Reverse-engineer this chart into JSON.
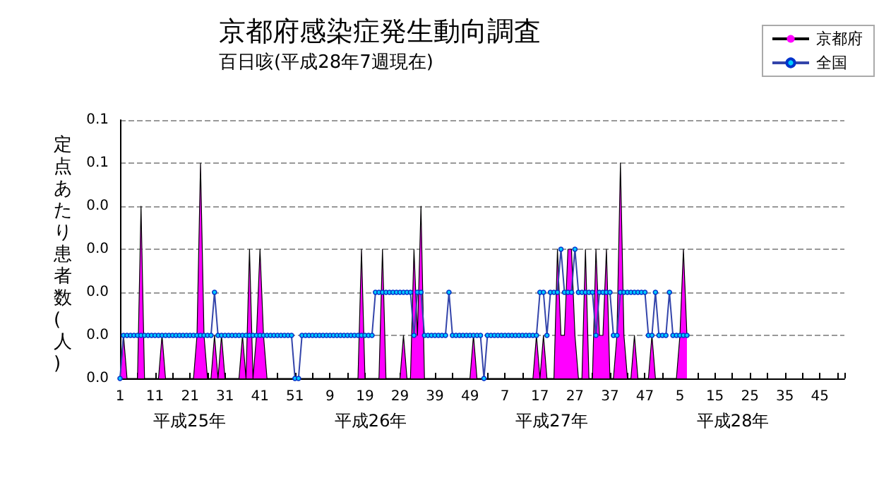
{
  "chart_data": {
    "type": "line",
    "title": "京都府感染症発生動向調査",
    "subtitle": "百日咳(平成28年7週現在)",
    "ylabel": "定点あたり患者数(人)",
    "annotations": [
      "平成25年",
      "平成26年",
      "平成27年",
      "平成28年"
    ],
    "categories": [
      "1",
      null,
      null,
      null,
      null,
      null,
      null,
      null,
      null,
      null,
      "11",
      null,
      null,
      null,
      null,
      null,
      null,
      null,
      null,
      null,
      "21",
      null,
      null,
      null,
      null,
      null,
      null,
      null,
      null,
      null,
      "31",
      null,
      null,
      null,
      null,
      null,
      null,
      null,
      null,
      null,
      "41",
      null,
      null,
      null,
      null,
      null,
      null,
      null,
      null,
      null,
      "51",
      null,
      null,
      null,
      null,
      null,
      null,
      null,
      null,
      null,
      "9",
      null,
      null,
      null,
      null,
      null,
      null,
      null,
      null,
      null,
      "19",
      null,
      null,
      null,
      null,
      null,
      null,
      null,
      null,
      null,
      "29",
      null,
      null,
      null,
      null,
      null,
      null,
      null,
      null,
      null,
      "39",
      null,
      null,
      null,
      null,
      null,
      null,
      null,
      null,
      null,
      "49",
      null,
      null,
      null,
      null,
      null,
      null,
      null,
      null,
      null,
      "7",
      null,
      null,
      null,
      null,
      null,
      null,
      null,
      null,
      null,
      "17",
      null,
      null,
      null,
      null,
      null,
      null,
      null,
      null,
      null,
      "27",
      null,
      null,
      null,
      null,
      null,
      null,
      null,
      null,
      null,
      "37",
      null,
      null,
      null,
      null,
      null,
      null,
      null,
      null,
      null,
      "47",
      null,
      null,
      null,
      null,
      null,
      null,
      null,
      null,
      null,
      "5",
      null,
      null,
      null,
      null,
      null,
      null,
      null,
      null,
      null,
      "15",
      null,
      null,
      null,
      null,
      null,
      null,
      null,
      null,
      null,
      "25",
      null,
      null,
      null,
      null,
      null,
      null,
      null,
      null,
      null,
      "35",
      null,
      null,
      null,
      null,
      null,
      null,
      null,
      null,
      null,
      "45",
      null,
      null,
      null,
      null,
      null,
      null,
      null
    ],
    "series": [
      {
        "name": "京都府",
        "type": "area",
        "color": "#ff00ff",
        "values": [
          0,
          0.01,
          0,
          0,
          0,
          0,
          0.04,
          0,
          0,
          0,
          0,
          0,
          0.01,
          0,
          0,
          0,
          0,
          0,
          0,
          0,
          0,
          0,
          0.01,
          0.05,
          0.01,
          0,
          0,
          0.01,
          0,
          0.01,
          0,
          0,
          0,
          0,
          0,
          0.01,
          0,
          0.03,
          0,
          0.01,
          0.03,
          0.01,
          0,
          0,
          0,
          0,
          0,
          0,
          0,
          0,
          0,
          0,
          0,
          0,
          0,
          0,
          0,
          0,
          0,
          0,
          0,
          0,
          0,
          0,
          0,
          0,
          0,
          0,
          0,
          0.03,
          0,
          0,
          0,
          0,
          0,
          0.03,
          0,
          0,
          0,
          0,
          0,
          0.01,
          0,
          0,
          0.03,
          0.01,
          0.04,
          0,
          0,
          0,
          0,
          0,
          0,
          0,
          0,
          0,
          0,
          0,
          0,
          0,
          0,
          0.01,
          0,
          0,
          0,
          0,
          0,
          0,
          0,
          0,
          0,
          0,
          0,
          0,
          0,
          0,
          0,
          0,
          0,
          0.01,
          0,
          0.01,
          0,
          0,
          0,
          0.03,
          0.01,
          0.01,
          0.03,
          0.03,
          0.01,
          0,
          0,
          0.03,
          0,
          0,
          0.03,
          0.01,
          0.01,
          0.03,
          0,
          0,
          0.01,
          0.05,
          0.01,
          0,
          0,
          0.01,
          0,
          0,
          0,
          0,
          0.01,
          0,
          0,
          0,
          0,
          0,
          0,
          0,
          0.01,
          0.03,
          0.01,
          null,
          null,
          null,
          null,
          null,
          null,
          null,
          null,
          null,
          null,
          null,
          null,
          null,
          null,
          null,
          null,
          null,
          null,
          null,
          null,
          null,
          null,
          null,
          null,
          null,
          null,
          null,
          null,
          null,
          null,
          null,
          null,
          null,
          null,
          null,
          null,
          null,
          null,
          null,
          null,
          null,
          null,
          null,
          null,
          null
        ]
      },
      {
        "name": "全国",
        "color": "#00ccff",
        "marker": "circle",
        "values": [
          0,
          0.01,
          0.01,
          0.01,
          0.01,
          0.01,
          0.01,
          0.01,
          0.01,
          0.01,
          0.01,
          0.01,
          0.01,
          0.01,
          0.01,
          0.01,
          0.01,
          0.01,
          0.01,
          0.01,
          0.01,
          0.01,
          0.01,
          0.01,
          0.01,
          0.01,
          0.01,
          0.02,
          0.01,
          0.01,
          0.01,
          0.01,
          0.01,
          0.01,
          0.01,
          0.01,
          0.01,
          0.01,
          0.01,
          0.01,
          0.01,
          0.01,
          0.01,
          0.01,
          0.01,
          0.01,
          0.01,
          0.01,
          0.01,
          0.01,
          0,
          0,
          0.01,
          0.01,
          0.01,
          0.01,
          0.01,
          0.01,
          0.01,
          0.01,
          0.01,
          0.01,
          0.01,
          0.01,
          0.01,
          0.01,
          0.01,
          0.01,
          0.01,
          0.01,
          0.01,
          0.01,
          0.01,
          0.02,
          0.02,
          0.02,
          0.02,
          0.02,
          0.02,
          0.02,
          0.02,
          0.02,
          0.02,
          0.02,
          0.01,
          0.02,
          0.02,
          0.01,
          0.01,
          0.01,
          0.01,
          0.01,
          0.01,
          0.01,
          0.02,
          0.01,
          0.01,
          0.01,
          0.01,
          0.01,
          0.01,
          0.01,
          0.01,
          0.01,
          0,
          0.01,
          0.01,
          0.01,
          0.01,
          0.01,
          0.01,
          0.01,
          0.01,
          0.01,
          0.01,
          0.01,
          0.01,
          0.01,
          0.01,
          0.01,
          0.02,
          0.02,
          0.01,
          0.02,
          0.02,
          0.02,
          0.03,
          0.02,
          0.02,
          0.02,
          0.03,
          0.02,
          0.02,
          0.02,
          0.02,
          0.02,
          0.01,
          0.02,
          0.02,
          0.02,
          0.02,
          0.01,
          0.01,
          0.02,
          0.02,
          0.02,
          0.02,
          0.02,
          0.02,
          0.02,
          0.02,
          0.01,
          0.01,
          0.02,
          0.01,
          0.01,
          0.01,
          0.02,
          0.01,
          0.01,
          0.01,
          0.01,
          0.01,
          null,
          null,
          null,
          null,
          null,
          null,
          null,
          null,
          null,
          null,
          null,
          null,
          null,
          null,
          null,
          null,
          null,
          null,
          null,
          null,
          null,
          null,
          null,
          null,
          null,
          null,
          null,
          null,
          null,
          null,
          null,
          null,
          null,
          null,
          null,
          null,
          null,
          null,
          null,
          null,
          null,
          null,
          null,
          null,
          null
        ]
      }
    ],
    "ylim": [
      0,
      0.06
    ],
    "yticks": [
      {
        "value": 0,
        "label": "0.0"
      },
      {
        "value": 0.01,
        "label": "0.0"
      },
      {
        "value": 0.02,
        "label": "0.0"
      },
      {
        "value": 0.03,
        "label": "0.0"
      },
      {
        "value": 0.04,
        "label": "0.0"
      },
      {
        "value": 0.05,
        "label": "0.1"
      },
      {
        "value": 0.06,
        "label": "0.1"
      }
    ],
    "grid": "y",
    "legend": "top right"
  }
}
